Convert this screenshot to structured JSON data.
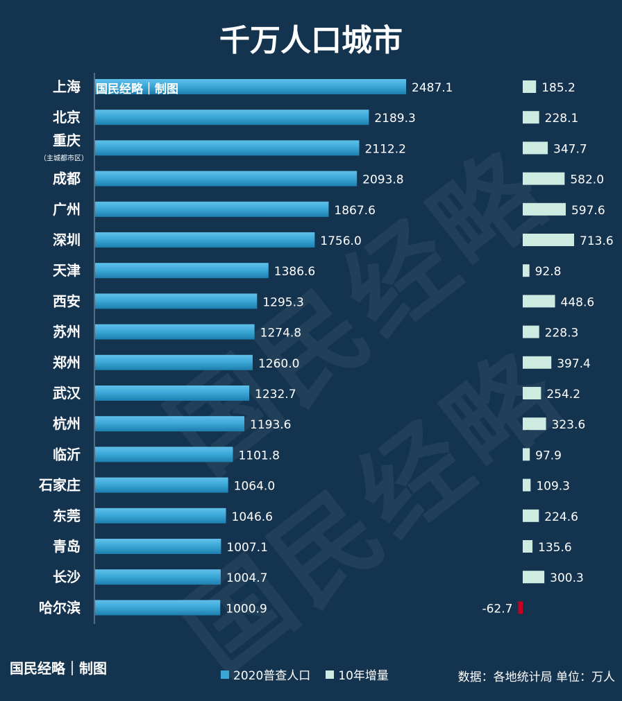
{
  "brand_overlay": "国民经略｜制图",
  "watermark_text": "国民经略",
  "footer": {
    "brand": "国民经略｜制图",
    "source": "数据：各地统计局 单位：万人"
  },
  "colors": {
    "background": "#14334f",
    "population_bar": "#3aa6d6",
    "growth_positive": "#cdebe0",
    "growth_negative": "#c8001e"
  },
  "chart_data": {
    "type": "bar",
    "orientation": "horizontal",
    "title": "千万人口城市",
    "categories": [
      "上海",
      "北京",
      "重庆",
      "成都",
      "广州",
      "深圳",
      "天津",
      "西安",
      "苏州",
      "郑州",
      "武汉",
      "杭州",
      "临沂",
      "石家庄",
      "东莞",
      "青岛",
      "长沙",
      "哈尔滨"
    ],
    "category_notes": {
      "重庆": "（主城都市区）"
    },
    "series": [
      {
        "name": "2020普查人口",
        "values": [
          2487.1,
          2189.3,
          2112.2,
          2093.8,
          1867.6,
          1756.0,
          1386.6,
          1295.3,
          1274.8,
          1260.0,
          1232.7,
          1193.6,
          1101.8,
          1064.0,
          1046.6,
          1007.1,
          1004.7,
          1000.9
        ]
      },
      {
        "name": "10年增量",
        "values": [
          185.2,
          228.1,
          347.7,
          582.0,
          597.6,
          713.6,
          92.8,
          448.6,
          228.3,
          397.4,
          254.2,
          323.6,
          97.9,
          109.3,
          224.6,
          135.6,
          300.3,
          -62.7
        ]
      }
    ],
    "legend_position": "bottom",
    "grid": false
  }
}
